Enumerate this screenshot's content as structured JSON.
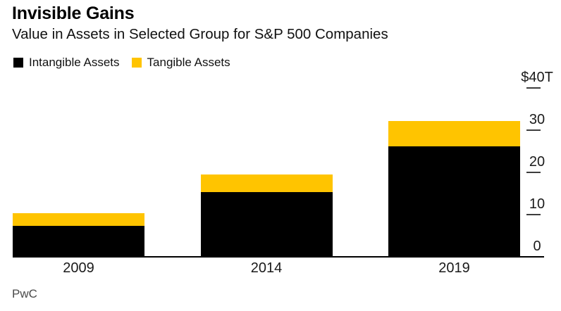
{
  "header": {
    "title": "Invisible Gains",
    "subtitle": "Value in Assets in Selected Group for S&P 500 Companies"
  },
  "legend": {
    "items": [
      {
        "label": "Intangible Assets",
        "color": "#000000"
      },
      {
        "label": "Tangible Assets",
        "color": "#FFC400"
      }
    ]
  },
  "source": "PwC",
  "chart_data": {
    "type": "bar",
    "stacked": true,
    "title": "Invisible Gains",
    "subtitle": "Value in Assets in Selected Group for S&P 500 Companies",
    "categories": [
      "2009",
      "2014",
      "2019"
    ],
    "series": [
      {
        "name": "Intangible Assets",
        "color": "#000000",
        "values": [
          7.3,
          15.3,
          26.2
        ]
      },
      {
        "name": "Tangible Assets",
        "color": "#FFC400",
        "values": [
          3.0,
          4.2,
          6.0
        ]
      }
    ],
    "totals": [
      10.3,
      19.5,
      32.2
    ],
    "y_axis": {
      "position": "right",
      "ylim": [
        0,
        40
      ],
      "ticks": [
        40,
        30,
        20,
        10,
        0
      ],
      "tick_labels": [
        "$40T",
        "30",
        "20",
        "10",
        "0"
      ]
    },
    "legend_position": "top-left",
    "grid": false,
    "source": "PwC"
  }
}
